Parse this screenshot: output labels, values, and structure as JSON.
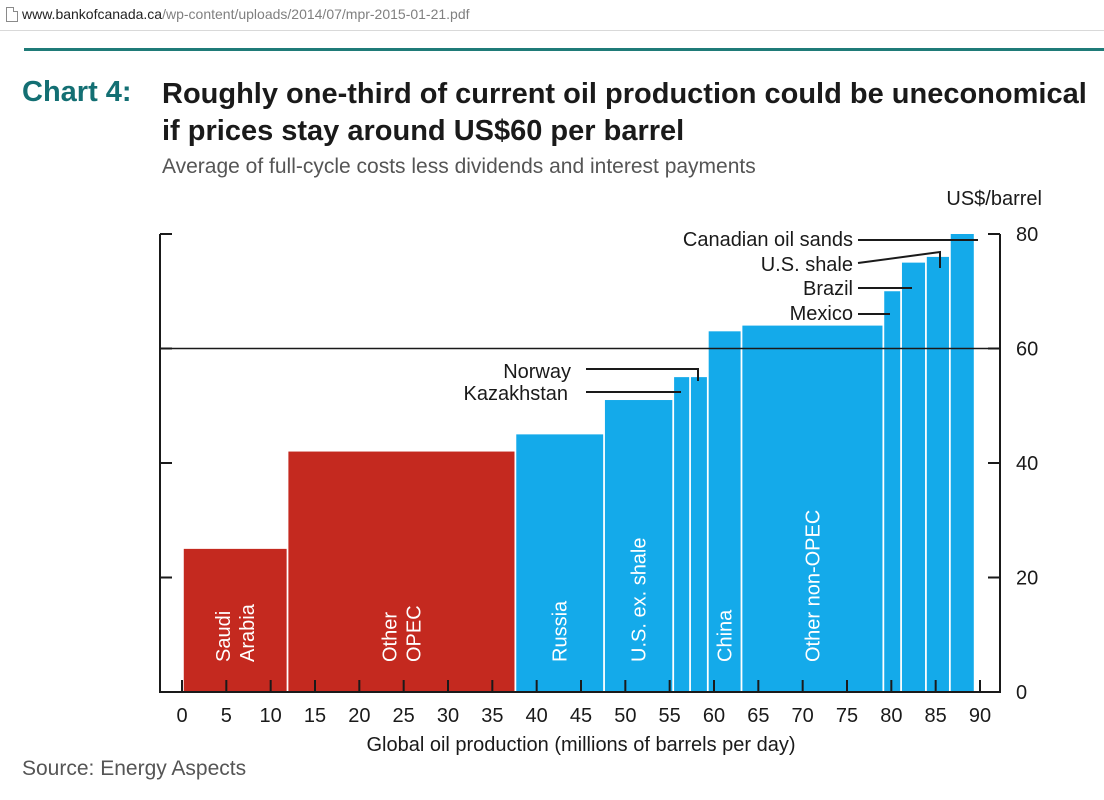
{
  "browser": {
    "url_host": "www.bankofcanada.ca",
    "url_path": "/wp-content/uploads/2014/07/mpr-2015-01-21.pdf",
    "page_icon": "document-icon"
  },
  "colors": {
    "opec": "#c4291f",
    "non_opec": "#14aaea",
    "heading": "#136f73",
    "rule": "#1f7b78"
  },
  "page": {
    "chart_label": "Chart 4:",
    "source": "Source: Energy Aspects"
  },
  "chart_data": {
    "type": "bar",
    "subtype": "variable-width cost curve",
    "title": "Roughly one-third of current oil production could be uneconomical if prices stay around US$60 per barrel",
    "subtitle": "Average of full-cycle costs less dividends and interest payments",
    "xlabel": "Global oil production (millions of barrels per day)",
    "ylabel": "US$/barrel",
    "xlim": [
      0,
      90
    ],
    "ylim": [
      0,
      80
    ],
    "xticks": [
      0,
      5,
      10,
      15,
      20,
      25,
      30,
      35,
      40,
      45,
      50,
      55,
      60,
      65,
      70,
      75,
      80,
      85,
      90
    ],
    "yticks": [
      0,
      20,
      40,
      60,
      80
    ],
    "y_axis_side": "right",
    "reference_line": {
      "y": 60
    },
    "bars": [
      {
        "label": "Saudi Arabia",
        "x0": 0.2,
        "x1": 11.8,
        "y": 25,
        "group": "opec",
        "label_pos": "inside"
      },
      {
        "label": "Other OPEC",
        "x0": 12.0,
        "x1": 37.5,
        "y": 42,
        "group": "opec",
        "label_pos": "inside"
      },
      {
        "label": "Russia",
        "x0": 37.7,
        "x1": 47.5,
        "y": 45,
        "group": "non_opec",
        "label_pos": "inside"
      },
      {
        "label": "U.S. ex. shale",
        "x0": 47.7,
        "x1": 55.3,
        "y": 51,
        "group": "non_opec",
        "label_pos": "inside"
      },
      {
        "label": "Kazakhstan",
        "x0": 55.5,
        "x1": 57.2,
        "y": 55,
        "group": "non_opec",
        "label_pos": "callout"
      },
      {
        "label": "Norway",
        "x0": 57.4,
        "x1": 59.2,
        "y": 55,
        "group": "non_opec",
        "label_pos": "callout"
      },
      {
        "label": "China",
        "x0": 59.4,
        "x1": 63.0,
        "y": 63,
        "group": "non_opec",
        "label_pos": "inside"
      },
      {
        "label": "Other non-OPEC",
        "x0": 63.2,
        "x1": 79.0,
        "y": 64,
        "group": "non_opec",
        "label_pos": "inside"
      },
      {
        "label": "Mexico",
        "x0": 79.2,
        "x1": 81.0,
        "y": 70,
        "group": "non_opec",
        "label_pos": "callout"
      },
      {
        "label": "Brazil",
        "x0": 81.2,
        "x1": 83.8,
        "y": 75,
        "group": "non_opec",
        "label_pos": "callout"
      },
      {
        "label": "U.S. shale",
        "x0": 84.0,
        "x1": 86.5,
        "y": 76,
        "group": "non_opec",
        "label_pos": "callout"
      },
      {
        "label": "Canadian oil sands",
        "x0": 86.7,
        "x1": 89.3,
        "y": 80,
        "group": "non_opec",
        "label_pos": "callout"
      }
    ]
  }
}
